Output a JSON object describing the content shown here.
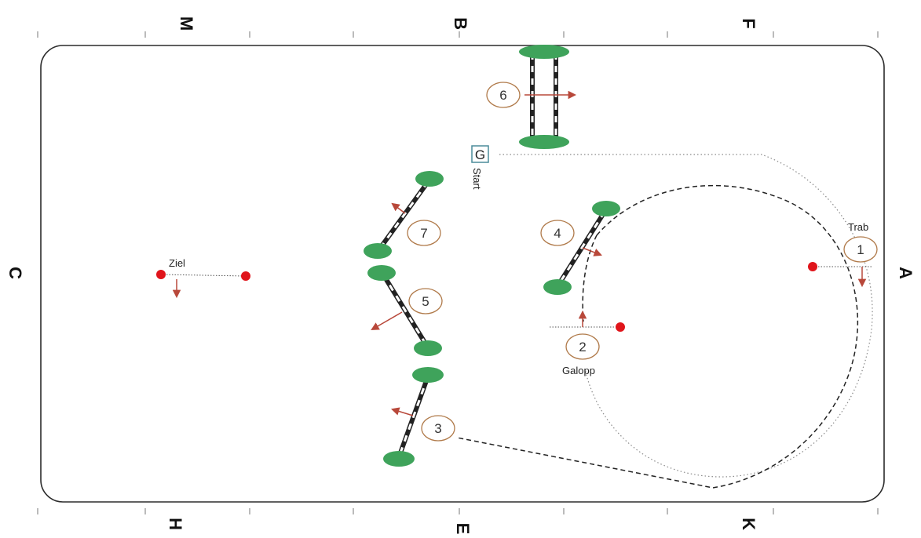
{
  "arena_letters": {
    "top": [
      "M",
      "B",
      "F"
    ],
    "bottom": [
      "H",
      "E",
      "K"
    ],
    "left": "C",
    "right": "A"
  },
  "marker_g": "G",
  "labels": {
    "start": "Start",
    "ziel": "Ziel",
    "trab": "Trab",
    "galopp": "Galopp"
  },
  "obstacles": [
    {
      "number": "1"
    },
    {
      "number": "2"
    },
    {
      "number": "3"
    },
    {
      "number": "4"
    },
    {
      "number": "5"
    },
    {
      "number": "6"
    },
    {
      "number": "7"
    }
  ],
  "colors": {
    "pole_green": "#3fa35b",
    "pole_dark": "#222222",
    "arrow": "#b8483a",
    "circle_outline": "#b07a4a",
    "marker_red": "#e0151b",
    "marker_g_border": "#4b8c9a"
  }
}
